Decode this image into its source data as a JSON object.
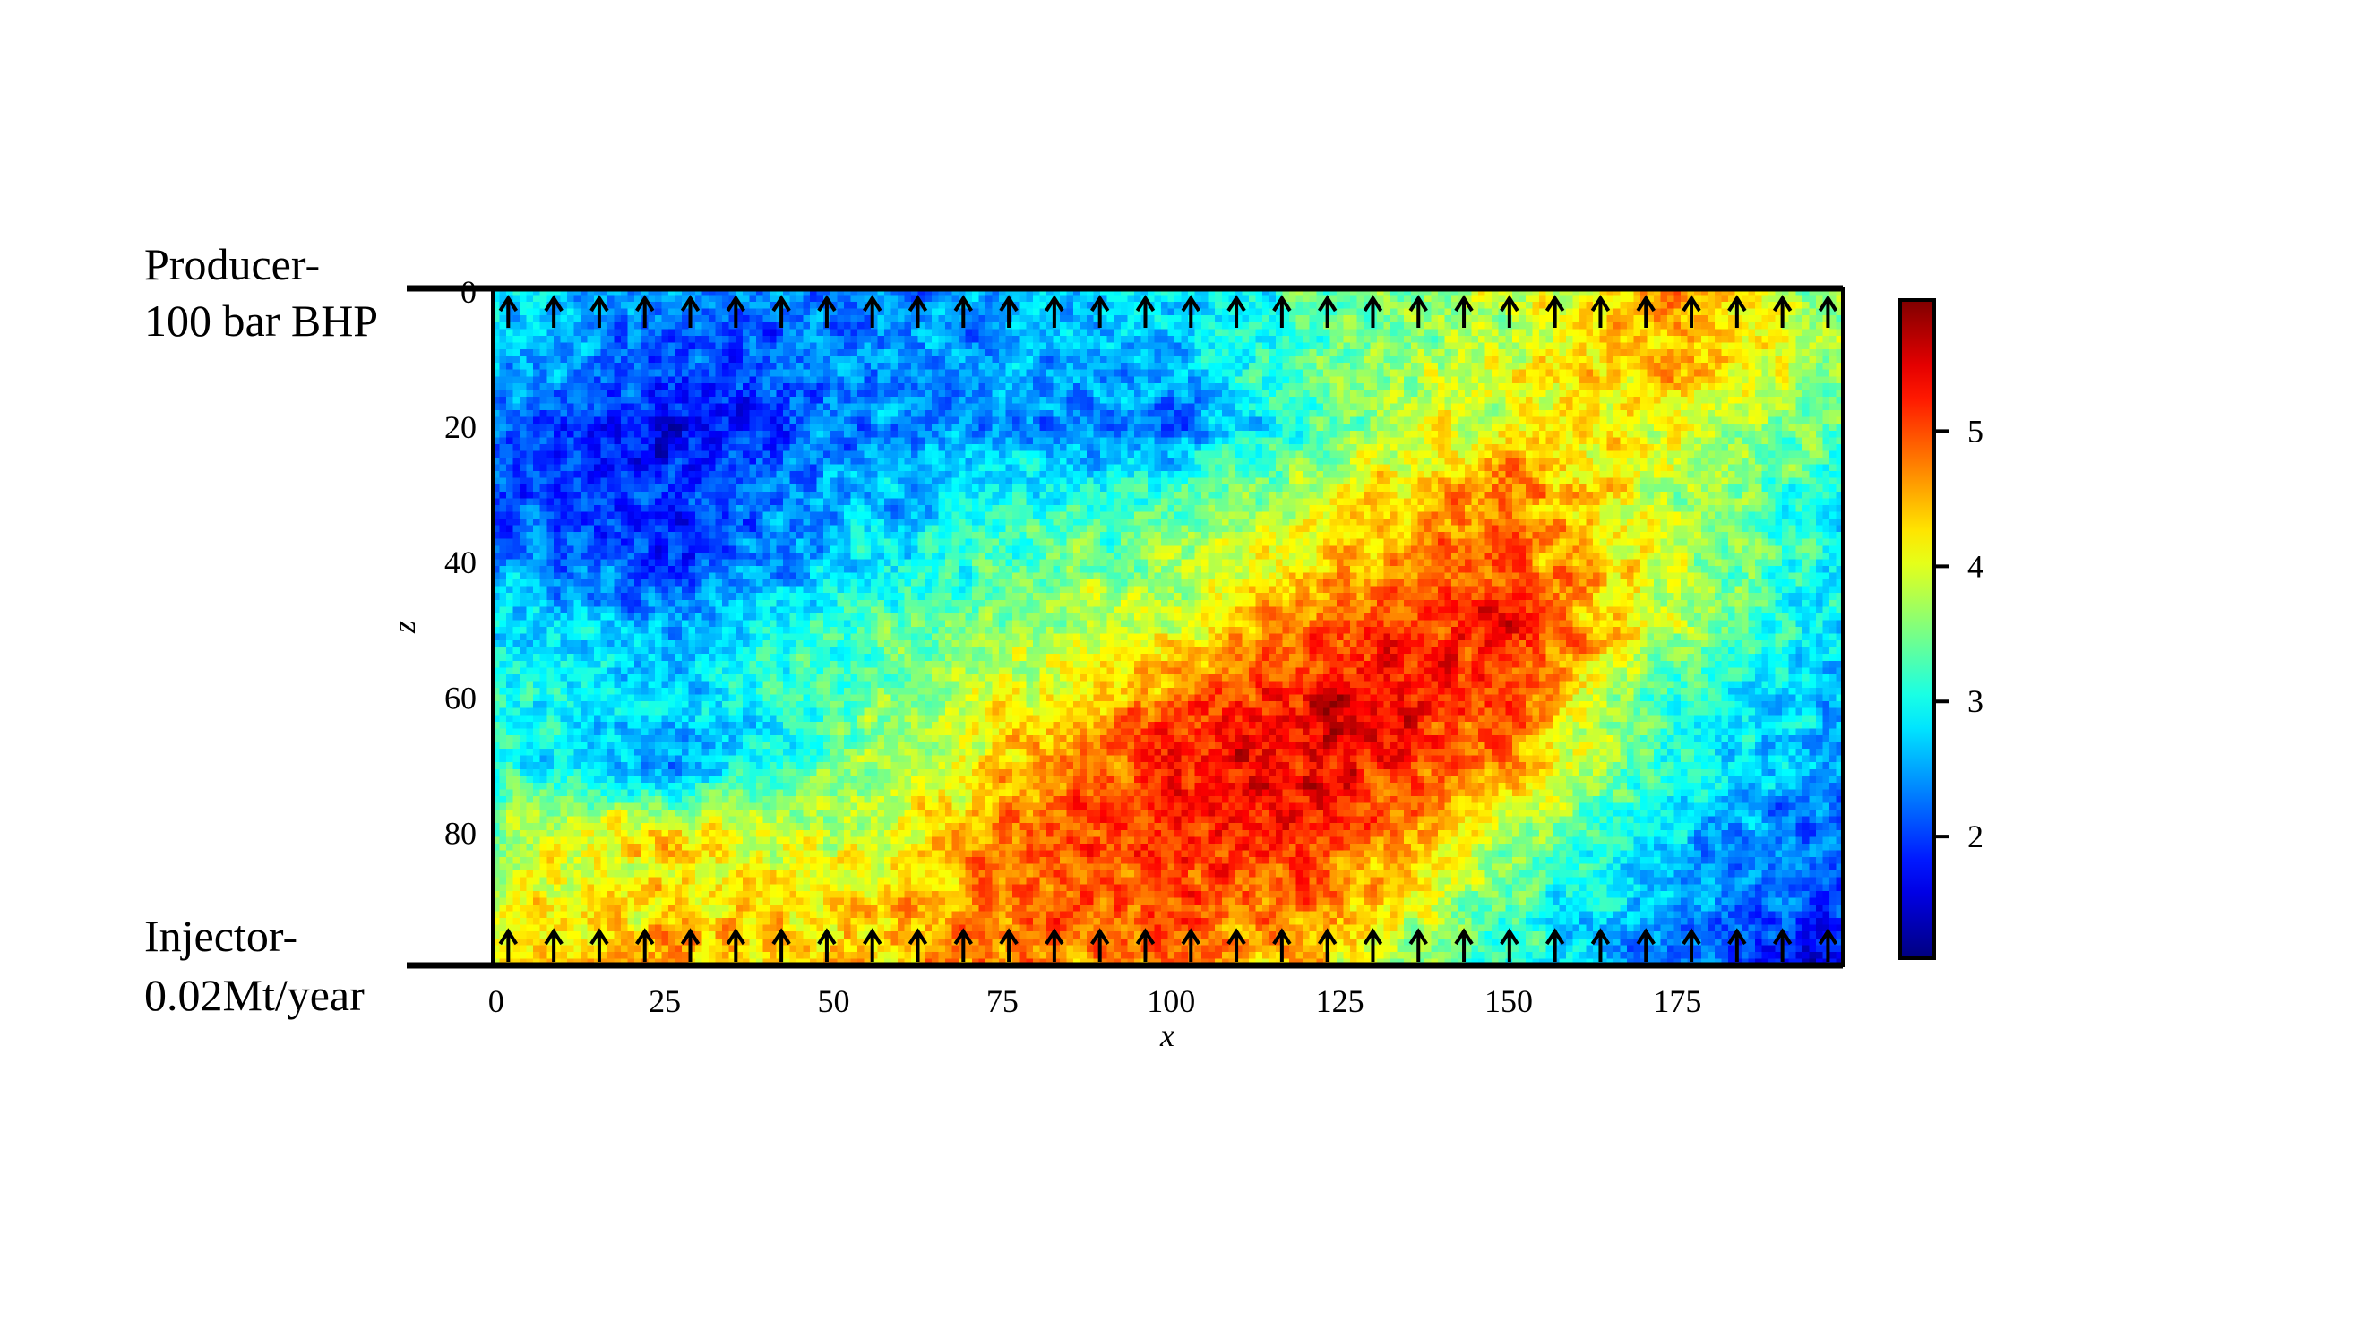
{
  "annotations": {
    "producer_line1": "Producer-",
    "producer_line2": "100 bar BHP",
    "injector_line1": "Injector-",
    "injector_line2": "0.02Mt/year"
  },
  "chart_data": {
    "type": "heatmap",
    "title": "",
    "xlabel": "x",
    "ylabel": "z",
    "xlim": [
      -0.5,
      199.5
    ],
    "ylim": [
      99.5,
      -0.5
    ],
    "y_inverted": true,
    "grid_cells": {
      "nx": 200,
      "nz": 100
    },
    "x_ticks": [
      0,
      25,
      50,
      75,
      100,
      125,
      150,
      175
    ],
    "y_ticks": [
      0,
      20,
      40,
      60,
      80
    ],
    "colormap": "jet",
    "color_range": [
      1.1,
      5.97
    ],
    "colorbar_ticks": [
      2,
      3,
      4,
      5
    ],
    "coarse_field": {
      "x": [
        0,
        25,
        50,
        75,
        100,
        125,
        150,
        175,
        199
      ],
      "z": [
        0,
        10,
        20,
        30,
        40,
        50,
        60,
        70,
        80,
        90,
        99
      ],
      "values": [
        [
          2.8,
          2.3,
          2.3,
          2.6,
          2.8,
          3.3,
          3.8,
          4.8,
          3.5
        ],
        [
          2.7,
          2.0,
          2.3,
          2.6,
          2.5,
          3.5,
          4.0,
          4.5,
          3.6
        ],
        [
          2.2,
          1.7,
          2.2,
          2.5,
          2.2,
          3.5,
          4.2,
          4.0,
          3.3
        ],
        [
          2.0,
          1.9,
          2.5,
          3.0,
          3.3,
          4.0,
          4.8,
          3.8,
          3.0
        ],
        [
          2.5,
          1.9,
          2.6,
          3.3,
          3.7,
          4.4,
          5.0,
          3.8,
          2.9
        ],
        [
          3.0,
          2.6,
          3.2,
          3.6,
          4.0,
          5.0,
          5.3,
          3.8,
          2.8
        ],
        [
          3.0,
          2.7,
          3.3,
          4.0,
          4.8,
          5.5,
          5.0,
          3.0,
          2.6
        ],
        [
          3.2,
          2.3,
          3.5,
          4.3,
          5.3,
          5.5,
          4.6,
          3.0,
          2.5
        ],
        [
          3.6,
          4.3,
          3.8,
          4.8,
          5.2,
          5.2,
          3.8,
          2.7,
          2.1
        ],
        [
          4.0,
          4.3,
          4.2,
          4.8,
          5.0,
          4.6,
          3.3,
          2.5,
          2.0
        ],
        [
          4.2,
          4.6,
          4.3,
          4.8,
          4.8,
          4.2,
          3.0,
          2.2,
          1.5
        ]
      ]
    },
    "well_arrows": {
      "count_per_boundary": 30,
      "direction": "up",
      "boundaries": [
        "top",
        "bottom"
      ]
    }
  }
}
